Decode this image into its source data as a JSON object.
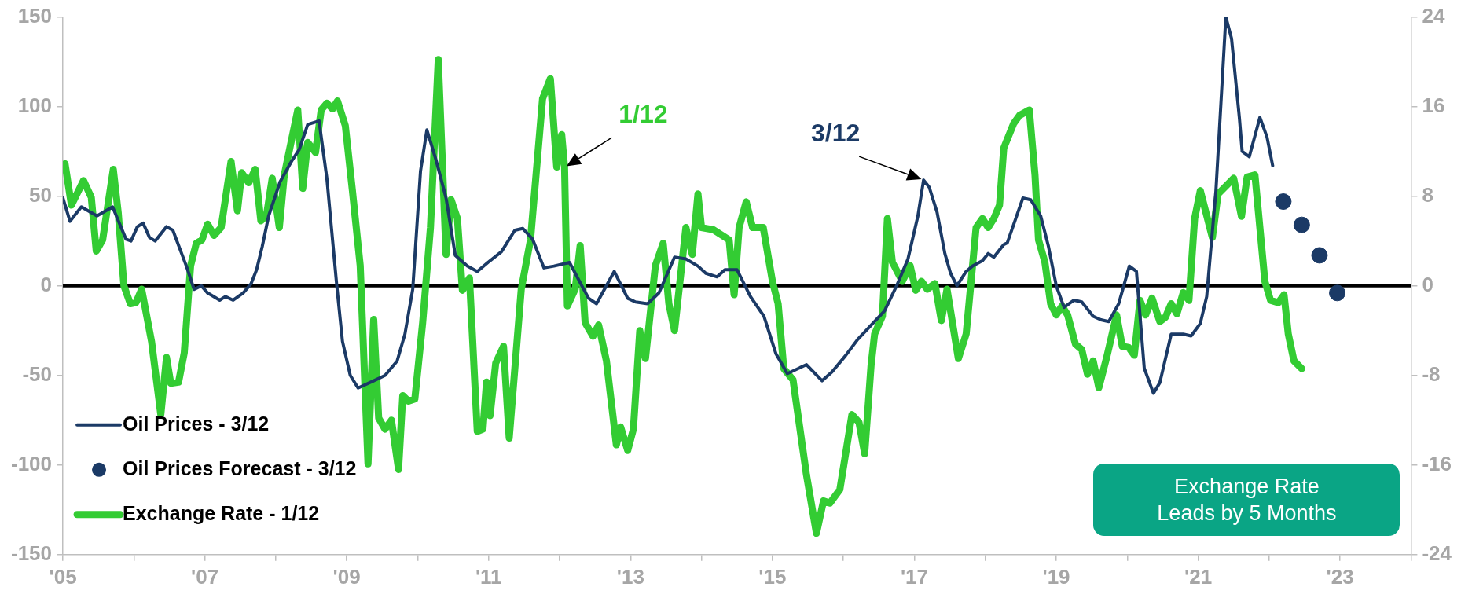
{
  "chart_data": {
    "type": "line",
    "xlim": [
      2005,
      2024
    ],
    "xticks": [
      {
        "value": 2005,
        "label": "'05"
      },
      {
        "value": 2006,
        "label": null
      },
      {
        "value": 2007,
        "label": "'07"
      },
      {
        "value": 2008,
        "label": null
      },
      {
        "value": 2009,
        "label": "'09"
      },
      {
        "value": 2010,
        "label": null
      },
      {
        "value": 2011,
        "label": "'11"
      },
      {
        "value": 2012,
        "label": null
      },
      {
        "value": 2013,
        "label": "'13"
      },
      {
        "value": 2014,
        "label": null
      },
      {
        "value": 2015,
        "label": "'15"
      },
      {
        "value": 2016,
        "label": null
      },
      {
        "value": 2017,
        "label": "'17"
      },
      {
        "value": 2018,
        "label": null
      },
      {
        "value": 2019,
        "label": "'19"
      },
      {
        "value": 2020,
        "label": null
      },
      {
        "value": 2021,
        "label": "'21"
      },
      {
        "value": 2022,
        "label": null
      },
      {
        "value": 2023,
        "label": "'23"
      },
      {
        "value": 2024,
        "label": null
      }
    ],
    "ylim": [
      -150,
      150
    ],
    "yticks": [
      -150,
      -100,
      -50,
      0,
      50,
      100,
      150
    ],
    "y2lim": [
      -24,
      24
    ],
    "y2ticks": [
      -24,
      -16,
      -8,
      0,
      8,
      16,
      24
    ],
    "legend": "bottom left",
    "marker": "none",
    "ref_lines": [
      {
        "axis": "y",
        "value": 0,
        "color": "#000000"
      }
    ],
    "annotations": [
      {
        "text": "1/12",
        "x": 2012.07,
        "y": 66
      },
      {
        "text": "3/12",
        "x": 2017.13,
        "y": 59
      },
      "Exchange Rate Leads by 5 Months"
    ],
    "series": [
      {
        "name": "Oil Prices - 3/12",
        "color": "#1b3a66",
        "x": [
          2005.0,
          2005.1,
          2005.26,
          2005.48,
          2005.7,
          2005.89,
          2005.96,
          2006.05,
          2006.13,
          2006.22,
          2006.3,
          2006.46,
          2006.55,
          2006.74,
          2006.85,
          2006.95,
          2007.04,
          2007.21,
          2007.29,
          2007.4,
          2007.54,
          2007.65,
          2007.73,
          2007.81,
          2007.9,
          2008.06,
          2008.23,
          2008.33,
          2008.45,
          2008.61,
          2008.72,
          2008.86,
          2008.94,
          2009.05,
          2009.16,
          2009.38,
          2009.54,
          2009.71,
          2009.82,
          2009.93,
          2010.04,
          2010.13,
          2010.26,
          2010.4,
          2010.53,
          2010.7,
          2010.84,
          2010.99,
          2011.18,
          2011.37,
          2011.48,
          2011.62,
          2011.78,
          2011.92,
          2012.14,
          2012.3,
          2012.41,
          2012.52,
          2012.77,
          2012.96,
          2013.07,
          2013.24,
          2013.4,
          2013.62,
          2013.78,
          2013.95,
          2014.06,
          2014.22,
          2014.33,
          2014.5,
          2014.69,
          2014.88,
          2015.05,
          2015.21,
          2015.48,
          2015.7,
          2015.84,
          2016.03,
          2016.2,
          2016.39,
          2016.58,
          2016.75,
          2016.91,
          2017.05,
          2017.13,
          2017.21,
          2017.32,
          2017.43,
          2017.51,
          2017.6,
          2017.73,
          2017.82,
          2017.96,
          2018.04,
          2018.12,
          2018.26,
          2018.31,
          2018.53,
          2018.64,
          2018.78,
          2018.89,
          2019.0,
          2019.11,
          2019.25,
          2019.36,
          2019.52,
          2019.63,
          2019.74,
          2019.88,
          2020.03,
          2020.13,
          2020.24,
          2020.37,
          2020.46,
          2020.62,
          2020.79,
          2020.9,
          2021.03,
          2021.12,
          2021.25,
          2021.39,
          2021.47,
          2021.58,
          2021.62,
          2021.72,
          2021.87,
          2021.97,
          2022.05
        ],
        "values": [
          49,
          36,
          44,
          39,
          44,
          26,
          25,
          33,
          35,
          27,
          25,
          33,
          31,
          11,
          -2,
          0,
          -4,
          -8,
          -6,
          -8,
          -4,
          1,
          9,
          22,
          39,
          58,
          70,
          76,
          90,
          92,
          60,
          0,
          -31,
          -50,
          -57,
          -53,
          -50,
          -42,
          -27,
          -2,
          64,
          87,
          70,
          49,
          17,
          11,
          8,
          13,
          19,
          31,
          32,
          26,
          10,
          11,
          13,
          1,
          -7,
          -10,
          8,
          -7,
          -9,
          -10,
          -4,
          16,
          15,
          11,
          7,
          5,
          9,
          9,
          -6,
          -17,
          -38,
          -49,
          -44,
          -53,
          -48,
          -39,
          -30,
          -22,
          -14,
          0,
          15,
          39,
          59,
          55,
          41,
          18,
          7,
          0,
          8,
          11,
          14,
          18,
          16,
          23,
          24,
          49,
          48,
          39,
          22,
          0,
          -12,
          -8,
          -9,
          -17,
          -19,
          -20,
          -10,
          11,
          8,
          -46,
          -60,
          -54,
          -27,
          -27,
          -28,
          -21,
          -6,
          53,
          150,
          138,
          94,
          75,
          72,
          94,
          83,
          67
        ]
      },
      {
        "name": "Oil Prices Forecast - 3/12",
        "type": "scatter",
        "marker": "circle",
        "color": "#1b3a66",
        "x": [
          2022.2,
          2022.46,
          2022.71,
          2022.96
        ],
        "values": [
          47,
          34,
          17,
          -4
        ]
      },
      {
        "name": "Exchange Rate - 1/12",
        "axis": "y2",
        "color": "#33cc33",
        "x": [
          2005.03,
          2005.12,
          2005.29,
          2005.4,
          2005.47,
          2005.56,
          2005.71,
          2005.78,
          2005.86,
          2005.95,
          2006.03,
          2006.11,
          2006.25,
          2006.38,
          2006.46,
          2006.52,
          2006.63,
          2006.71,
          2006.8,
          2006.88,
          2006.96,
          2007.04,
          2007.13,
          2007.23,
          2007.37,
          2007.46,
          2007.52,
          2007.62,
          2007.71,
          2007.79,
          2007.87,
          2007.95,
          2008.05,
          2008.12,
          2008.31,
          2008.38,
          2008.45,
          2008.56,
          2008.64,
          2008.72,
          2008.8,
          2008.87,
          2008.98,
          2009.08,
          2009.19,
          2009.3,
          2009.38,
          2009.45,
          2009.54,
          2009.63,
          2009.73,
          2009.79,
          2009.87,
          2009.96,
          2010.07,
          2010.18,
          2010.29,
          2010.4,
          2010.47,
          2010.56,
          2010.63,
          2010.73,
          2010.84,
          2010.92,
          2010.97,
          2011.02,
          2011.1,
          2011.21,
          2011.29,
          2011.46,
          2011.59,
          2011.76,
          2011.87,
          2011.96,
          2012.03,
          2012.07,
          2012.11,
          2012.22,
          2012.29,
          2012.36,
          2012.47,
          2012.55,
          2012.66,
          2012.8,
          2012.86,
          2012.96,
          2013.04,
          2013.13,
          2013.21,
          2013.35,
          2013.46,
          2013.54,
          2013.62,
          2013.78,
          2013.87,
          2013.95,
          2014.0,
          2014.17,
          2014.39,
          2014.46,
          2014.53,
          2014.63,
          2014.72,
          2014.87,
          2015.0,
          2015.08,
          2015.16,
          2015.29,
          2015.48,
          2015.62,
          2015.72,
          2015.81,
          2015.95,
          2016.12,
          2016.22,
          2016.3,
          2016.39,
          2016.44,
          2016.55,
          2016.62,
          2016.69,
          2016.83,
          2016.94,
          2017.02,
          2017.1,
          2017.18,
          2017.29,
          2017.38,
          2017.46,
          2017.62,
          2017.73,
          2017.87,
          2017.96,
          2018.04,
          2018.12,
          2018.2,
          2018.26,
          2018.4,
          2018.48,
          2018.62,
          2018.7,
          2018.75,
          2018.84,
          2018.92,
          2019.0,
          2019.08,
          2019.16,
          2019.27,
          2019.36,
          2019.44,
          2019.52,
          2019.6,
          2019.71,
          2019.85,
          2019.93,
          2020.02,
          2020.1,
          2020.18,
          2020.26,
          2020.35,
          2020.46,
          2020.54,
          2020.62,
          2020.7,
          2020.79,
          2020.87,
          2020.95,
          2021.03,
          2021.2,
          2021.28,
          2021.5,
          2021.61,
          2021.69,
          2021.8,
          2021.94,
          2022.02,
          2022.13,
          2022.21,
          2022.27,
          2022.35,
          2022.46
        ],
        "values": [
          10.9,
          7.2,
          9.4,
          7.9,
          3.1,
          4.1,
          10.4,
          6.5,
          0,
          -1.6,
          -1.5,
          -0.3,
          -5.0,
          -11.5,
          -6.4,
          -8.7,
          -8.6,
          -6.0,
          1.8,
          3.8,
          4.1,
          5.5,
          4.5,
          5.2,
          11.1,
          6.7,
          10.1,
          9.2,
          10.4,
          5.8,
          6.3,
          9.6,
          5.2,
          9.9,
          15.7,
          8.7,
          12.8,
          11.9,
          15.7,
          16.3,
          15.8,
          16.5,
          14.3,
          8.5,
          1.8,
          -15.9,
          -3.0,
          -11.8,
          -12.8,
          -12.0,
          -16.4,
          -9.8,
          -10.3,
          -10.1,
          -3.3,
          5.2,
          20.2,
          2.8,
          7.7,
          6.0,
          -0.4,
          0.7,
          -13.0,
          -12.8,
          -8.6,
          -11.6,
          -6.9,
          -5.4,
          -13.6,
          -0.3,
          4.1,
          16.7,
          18.5,
          10.6,
          13.5,
          10.6,
          -1.8,
          -0.3,
          3.6,
          -3.3,
          -4.5,
          -3.5,
          -6.7,
          -14.2,
          -12.6,
          -14.7,
          -12.8,
          -4.0,
          -6.5,
          1.8,
          3.8,
          -1.6,
          -4.0,
          5.2,
          2.8,
          8.2,
          5.2,
          5.0,
          4.1,
          -0.8,
          5.2,
          7.5,
          5.2,
          5.2,
          0.4,
          -1.6,
          -7.4,
          -8.4,
          -16.9,
          -22.1,
          -19.2,
          -19.4,
          -18.2,
          -11.5,
          -12.2,
          -15.0,
          -7.1,
          -4.3,
          -2.7,
          6.0,
          2.1,
          0.4,
          1.8,
          -0.4,
          0.4,
          -0.3,
          0.2,
          -3.1,
          -0.3,
          -6.5,
          -4.3,
          5.2,
          6.0,
          5.2,
          6.0,
          7.2,
          12.3,
          14.5,
          15.2,
          15.7,
          9.9,
          4.1,
          2.1,
          -1.6,
          -2.6,
          -1.8,
          -2.6,
          -5.2,
          -5.7,
          -7.9,
          -6.7,
          -9.1,
          -6.4,
          -2.6,
          -5.4,
          -5.5,
          -6.2,
          -1.3,
          -2.6,
          -1.1,
          -3.2,
          -2.8,
          -1.6,
          -2.5,
          -0.6,
          -1.3,
          6.0,
          8.5,
          4.3,
          8.2,
          9.6,
          6.2,
          9.7,
          9.9,
          0.4,
          -1.3,
          -1.5,
          -0.8,
          -4.3,
          -6.7,
          -7.4
        ]
      }
    ]
  }
}
